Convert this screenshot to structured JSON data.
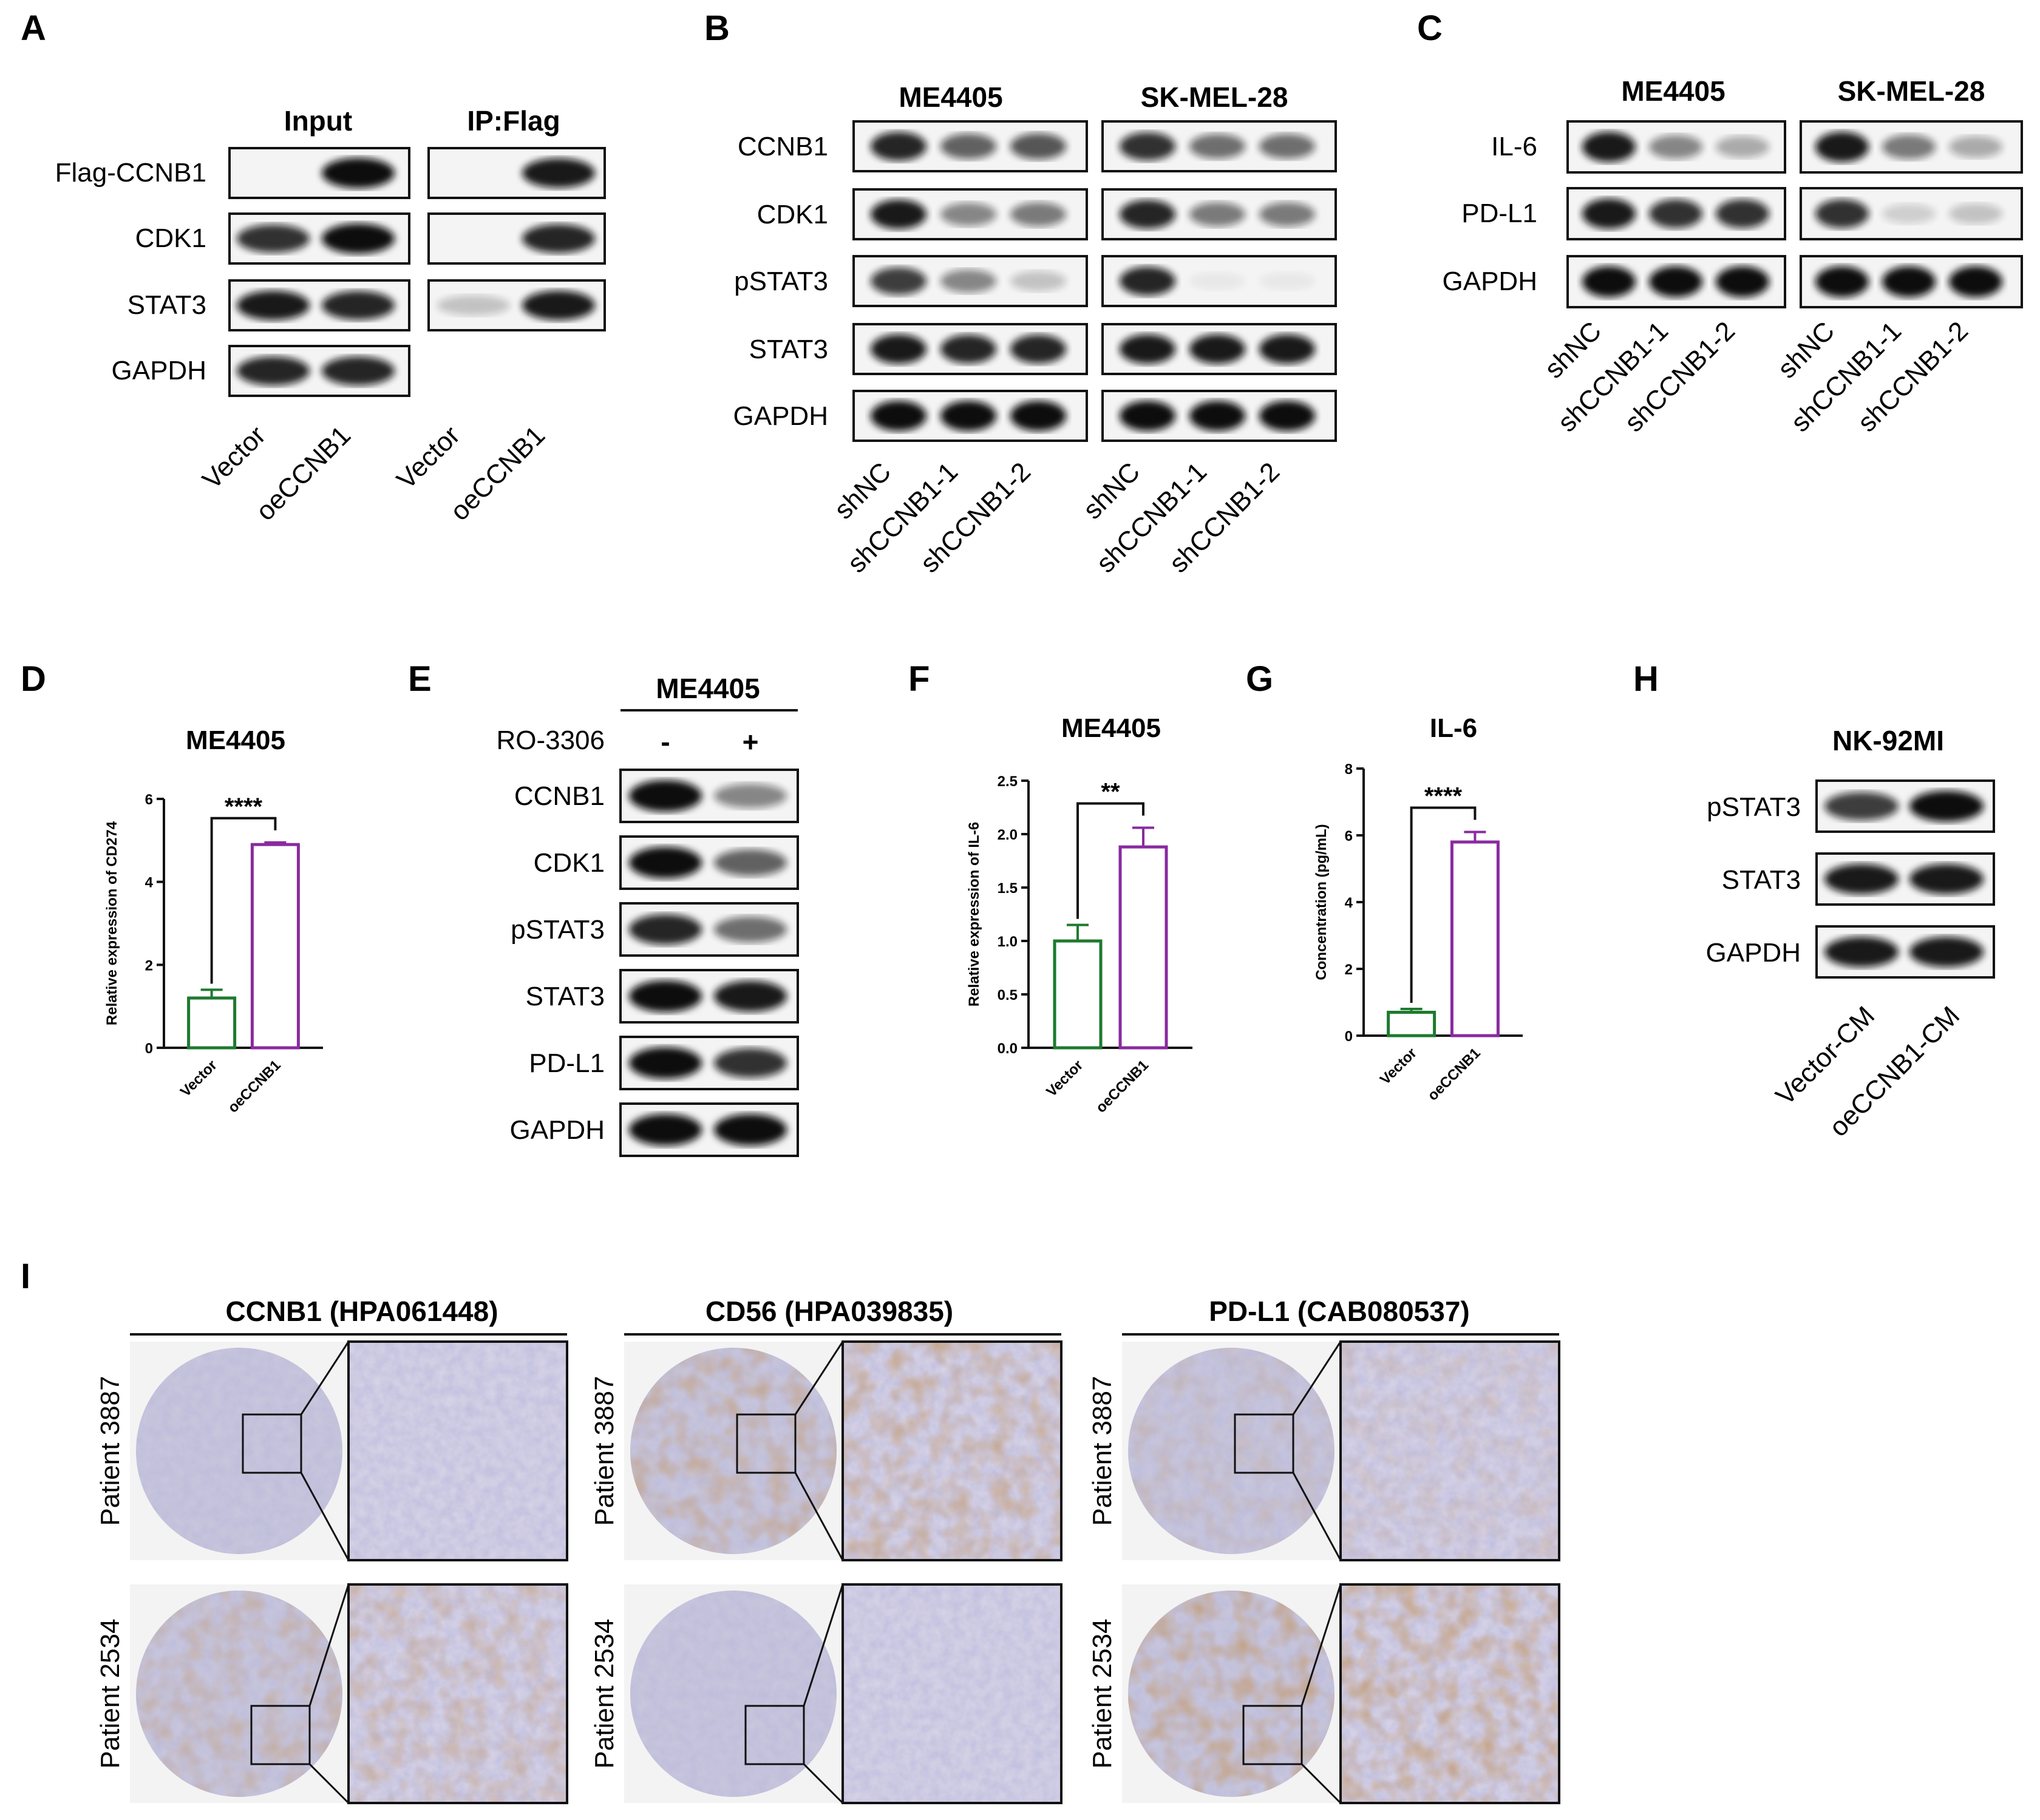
{
  "panel_letters": [
    "A",
    "B",
    "C",
    "D",
    "E",
    "F",
    "G",
    "H",
    "I"
  ],
  "panelA": {
    "headers": [
      "Input",
      "IP:Flag"
    ],
    "rows": [
      "Flag-CCNB1",
      "CDK1",
      "STAT3",
      "GAPDH"
    ],
    "lanes": [
      "Vector",
      "oeCCNB1",
      "Vector",
      "oeCCNB1"
    ],
    "intensity": [
      [
        0.0,
        0.95,
        0.0,
        0.9
      ],
      [
        0.8,
        0.95,
        0.0,
        0.85
      ],
      [
        0.9,
        0.85,
        0.2,
        0.9
      ],
      [
        0.85,
        0.85
      ]
    ]
  },
  "panelB": {
    "cells": [
      "ME4405",
      "SK-MEL-28"
    ],
    "rows": [
      "CCNB1",
      "CDK1",
      "pSTAT3",
      "STAT3",
      "GAPDH"
    ],
    "lanes": [
      "shNC",
      "shCCNB1-1",
      "shCCNB1-2",
      "shNC",
      "shCCNB1-1",
      "shCCNB1-2"
    ],
    "intensity": [
      [
        0.85,
        0.6,
        0.65,
        0.8,
        0.55,
        0.55
      ],
      [
        0.9,
        0.45,
        0.5,
        0.85,
        0.5,
        0.5
      ],
      [
        0.75,
        0.45,
        0.2,
        0.85,
        0.05,
        0.05
      ],
      [
        0.9,
        0.85,
        0.85,
        0.9,
        0.9,
        0.9
      ],
      [
        0.95,
        0.95,
        0.95,
        0.95,
        0.95,
        0.95
      ]
    ]
  },
  "panelC": {
    "cells": [
      "ME4405",
      "SK-MEL-28"
    ],
    "rows": [
      "IL-6",
      "PD-L1",
      "GAPDH"
    ],
    "lanes": [
      "shNC",
      "shCCNB1-1",
      "shCCNB1-2",
      "shNC",
      "shCCNB1-1",
      "shCCNB1-2"
    ],
    "intensity": [
      [
        0.9,
        0.45,
        0.3,
        0.9,
        0.5,
        0.3
      ],
      [
        0.9,
        0.8,
        0.8,
        0.8,
        0.15,
        0.2
      ],
      [
        0.95,
        0.95,
        0.95,
        0.95,
        0.95,
        0.95
      ]
    ]
  },
  "panelE": {
    "cell": "ME4405",
    "treatment_label": "RO-3306",
    "treatment": [
      "-",
      "+"
    ],
    "rows": [
      "CCNB1",
      "CDK1",
      "pSTAT3",
      "STAT3",
      "PD-L1",
      "GAPDH"
    ],
    "intensity": [
      [
        0.95,
        0.45
      ],
      [
        0.95,
        0.6
      ],
      [
        0.85,
        0.55
      ],
      [
        0.95,
        0.9
      ],
      [
        0.95,
        0.8
      ],
      [
        0.95,
        0.95
      ]
    ]
  },
  "panelH": {
    "cell": "NK-92MI",
    "rows": [
      "pSTAT3",
      "STAT3",
      "GAPDH"
    ],
    "lanes": [
      "Vector-CM",
      "oeCCNB1-CM"
    ],
    "intensity": [
      [
        0.75,
        0.95
      ],
      [
        0.9,
        0.9
      ],
      [
        0.9,
        0.9
      ]
    ]
  },
  "chart_data": [
    {
      "panel": "D",
      "type": "bar",
      "title": "ME4405",
      "ylabel": "Relative expression of CD274",
      "categories": [
        "Vector",
        "oeCCNB1"
      ],
      "values": [
        1.2,
        4.9
      ],
      "errors": [
        0.2,
        0.05
      ],
      "ylim": [
        0,
        6
      ],
      "yticks": [
        0,
        2,
        4,
        6
      ],
      "significance": "****",
      "colors": [
        "#1e7a2e",
        "#8a2aa0"
      ]
    },
    {
      "panel": "F",
      "type": "bar",
      "title": "ME4405",
      "ylabel": "Relative expression of IL-6",
      "categories": [
        "Vector",
        "oeCCNB1"
      ],
      "values": [
        1.0,
        1.88
      ],
      "errors": [
        0.15,
        0.18
      ],
      "ylim": [
        0,
        2.5
      ],
      "yticks": [
        0.0,
        0.5,
        1.0,
        1.5,
        2.0,
        2.5
      ],
      "significance": "**",
      "colors": [
        "#1e7a2e",
        "#8a2aa0"
      ]
    },
    {
      "panel": "G",
      "type": "bar",
      "title": "IL-6",
      "ylabel": "Concentration (pg/mL)",
      "categories": [
        "Vector",
        "oeCCNB1"
      ],
      "values": [
        0.7,
        5.8
      ],
      "errors": [
        0.1,
        0.3
      ],
      "ylim": [
        0,
        8
      ],
      "yticks": [
        0,
        2,
        4,
        6,
        8
      ],
      "significance": "****",
      "colors": [
        "#1e7a2e",
        "#8a2aa0"
      ]
    }
  ],
  "panelI": {
    "markers": [
      "CCNB1 (HPA061448)",
      "CD56 (HPA039835)",
      "PD-L1 (CAB080537)"
    ],
    "patients": [
      "Patient 3887",
      "Patient 2534"
    ],
    "stain": [
      [
        0.05,
        0.35
      ],
      [
        0.45,
        0.05
      ],
      [
        0.2,
        0.55
      ]
    ]
  }
}
